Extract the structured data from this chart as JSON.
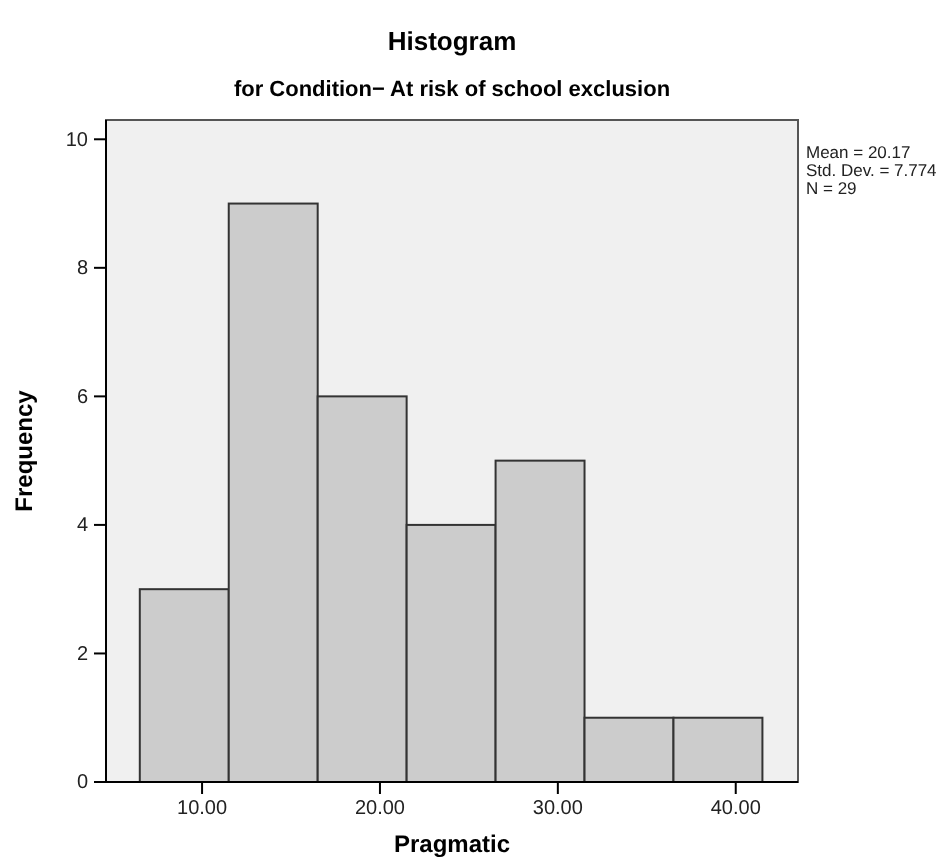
{
  "chart_data": {
    "type": "histogram",
    "title": "Histogram",
    "subtitle": "for Condition− At risk of school exclusion",
    "xlabel": "Pragmatic",
    "ylabel": "Frequency",
    "bins": [
      6.5,
      11.5,
      16.5,
      21.5,
      26.5,
      31.5,
      36.5,
      41.5
    ],
    "values": [
      3,
      9,
      6,
      4,
      5,
      1,
      1
    ],
    "color": "#cccccc",
    "xlim": [
      4.6,
      43.5
    ],
    "xticks": [
      {
        "value": 10,
        "label": "10.00"
      },
      {
        "value": 20,
        "label": "20.00"
      },
      {
        "value": 30,
        "label": "30.00"
      },
      {
        "value": 40,
        "label": "40.00"
      }
    ],
    "ylim": [
      0,
      10.3
    ],
    "yticks": [
      0,
      2,
      4,
      6,
      8,
      10
    ],
    "annotations": [
      "Mean = 20.17",
      "Std. Dev. = 7.774",
      "N = 29"
    ]
  }
}
